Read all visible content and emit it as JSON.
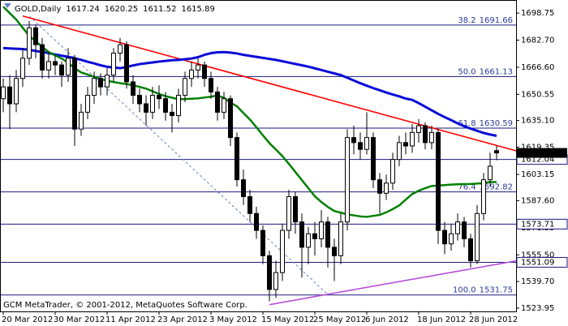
{
  "chart_data": {
    "type": "candlestick",
    "title": "GOLD,Daily",
    "footer": "GCM MetaTrader, © 2001-2012, MetaQuotes Software Corp.",
    "categories": [
      "20 Mar 2012",
      null,
      null,
      null,
      null,
      null,
      null,
      null,
      "30 Mar 2012",
      null,
      null,
      null,
      null,
      null,
      null,
      null,
      "11 Apr 2012",
      null,
      null,
      null,
      null,
      null,
      null,
      null,
      "23 Apr 2012",
      null,
      null,
      null,
      null,
      null,
      null,
      null,
      "3 May 2012",
      null,
      null,
      null,
      null,
      null,
      null,
      null,
      "15 May 2012",
      null,
      null,
      null,
      null,
      null,
      null,
      null,
      "25 May 2012",
      null,
      null,
      null,
      null,
      null,
      null,
      null,
      "6 Jun 2012",
      null,
      null,
      null,
      null,
      null,
      null,
      null,
      "18 Jun 2012",
      null,
      null,
      null,
      null,
      null,
      null,
      null,
      "28 Jun 2012",
      null,
      null,
      null,
      null
    ],
    "ohlc": [
      [
        1648,
        1660,
        1640,
        1655
      ],
      [
        1655,
        1662,
        1630,
        1645
      ],
      [
        1645,
        1665,
        1640,
        1660
      ],
      [
        1660,
        1678,
        1655,
        1672
      ],
      [
        1672,
        1694,
        1668,
        1690
      ],
      [
        1690,
        1692,
        1672,
        1680
      ],
      [
        1680,
        1684,
        1660,
        1665
      ],
      [
        1665,
        1676,
        1660,
        1670
      ],
      [
        1670,
        1674,
        1662,
        1668
      ],
      [
        1668,
        1670,
        1655,
        1662
      ],
      [
        1662,
        1678,
        1658,
        1672
      ],
      [
        1672,
        1674,
        1620,
        1630
      ],
      [
        1630,
        1645,
        1626,
        1640
      ],
      [
        1640,
        1655,
        1636,
        1650
      ],
      [
        1650,
        1664,
        1645,
        1660
      ],
      [
        1660,
        1663,
        1650,
        1655
      ],
      [
        1655,
        1666,
        1650,
        1662
      ],
      [
        1662,
        1678,
        1658,
        1675
      ],
      [
        1675,
        1684,
        1670,
        1680
      ],
      [
        1680,
        1682,
        1654,
        1658
      ],
      [
        1658,
        1662,
        1645,
        1650
      ],
      [
        1650,
        1654,
        1640,
        1645
      ],
      [
        1645,
        1650,
        1632,
        1640
      ],
      [
        1640,
        1655,
        1636,
        1650
      ],
      [
        1650,
        1656,
        1642,
        1648
      ],
      [
        1648,
        1652,
        1635,
        1640
      ],
      [
        1640,
        1645,
        1628,
        1638
      ],
      [
        1638,
        1654,
        1634,
        1650
      ],
      [
        1650,
        1664,
        1646,
        1660
      ],
      [
        1660,
        1670,
        1655,
        1665
      ],
      [
        1665,
        1672,
        1660,
        1668
      ],
      [
        1668,
        1670,
        1655,
        1660
      ],
      [
        1660,
        1664,
        1648,
        1652
      ],
      [
        1652,
        1655,
        1635,
        1640
      ],
      [
        1640,
        1652,
        1636,
        1648
      ],
      [
        1648,
        1650,
        1620,
        1625
      ],
      [
        1625,
        1628,
        1596,
        1600
      ],
      [
        1600,
        1606,
        1585,
        1590
      ],
      [
        1590,
        1594,
        1575,
        1580
      ],
      [
        1580,
        1584,
        1565,
        1570
      ],
      [
        1570,
        1573,
        1550,
        1555
      ],
      [
        1555,
        1558,
        1528,
        1535
      ],
      [
        1535,
        1552,
        1530,
        1545
      ],
      [
        1545,
        1574,
        1540,
        1570
      ],
      [
        1570,
        1594,
        1565,
        1590
      ],
      [
        1590,
        1593,
        1568,
        1575
      ],
      [
        1575,
        1580,
        1542,
        1560
      ],
      [
        1560,
        1572,
        1550,
        1568
      ],
      [
        1568,
        1575,
        1555,
        1565
      ],
      [
        1565,
        1582,
        1560,
        1575
      ],
      [
        1575,
        1578,
        1548,
        1560
      ],
      [
        1560,
        1565,
        1540,
        1555
      ],
      [
        1555,
        1580,
        1550,
        1575
      ],
      [
        1575,
        1630,
        1570,
        1625
      ],
      [
        1625,
        1632,
        1615,
        1622
      ],
      [
        1622,
        1628,
        1612,
        1618
      ],
      [
        1618,
        1640,
        1615,
        1625
      ],
      [
        1625,
        1628,
        1595,
        1600
      ],
      [
        1600,
        1604,
        1580,
        1592
      ],
      [
        1592,
        1603,
        1588,
        1598
      ],
      [
        1598,
        1616,
        1594,
        1612
      ],
      [
        1612,
        1626,
        1608,
        1622
      ],
      [
        1622,
        1628,
        1615,
        1620
      ],
      [
        1620,
        1633,
        1616,
        1628
      ],
      [
        1628,
        1636,
        1622,
        1632
      ],
      [
        1632,
        1634,
        1618,
        1622
      ],
      [
        1622,
        1632,
        1618,
        1628
      ],
      [
        1628,
        1630,
        1562,
        1570
      ],
      [
        1570,
        1575,
        1556,
        1562
      ],
      [
        1562,
        1574,
        1558,
        1568
      ],
      [
        1568,
        1580,
        1564,
        1575
      ],
      [
        1575,
        1578,
        1560,
        1565
      ],
      [
        1565,
        1568,
        1548,
        1552
      ],
      [
        1552,
        1585,
        1550,
        1580
      ],
      [
        1580,
        1604,
        1576,
        1600
      ],
      [
        1600,
        1616,
        1596,
        1608
      ],
      [
        1617.24,
        1620.25,
        1611.52,
        1615.89
      ]
    ],
    "bull_color": "#ffffff",
    "bear_color": "#000000",
    "moving_averages": [
      {
        "color": "#0a0ad8",
        "values": [
          1678,
          1677.8,
          1677.6,
          1677.4,
          1677,
          1676.3,
          1675.7,
          1675,
          1674.2,
          1673.5,
          1672.8,
          1672,
          1671,
          1669.9,
          1668.9,
          1667.8,
          1666.9,
          1666.5,
          1666.1,
          1666.8,
          1667.7,
          1668.5,
          1669,
          1669.5,
          1670,
          1670.4,
          1670.8,
          1671,
          1671.4,
          1671.8,
          1672.6,
          1674,
          1675,
          1675.5,
          1675.6,
          1675.3,
          1674.8,
          1674,
          1673.4,
          1672.8,
          1672.2,
          1671.6,
          1671,
          1670.2,
          1669.4,
          1668.6,
          1667.8,
          1667,
          1666,
          1665,
          1664,
          1663,
          1662,
          1660.4,
          1658.8,
          1657.2,
          1655.7,
          1654.3,
          1653,
          1651.7,
          1650.5,
          1649.4,
          1648.1,
          1647.3,
          1645.4,
          1643.3,
          1641.1,
          1639,
          1637.1,
          1635.3,
          1633.4,
          1631.7,
          1630.3,
          1629,
          1627.7,
          1626.8,
          1626
        ]
      },
      {
        "color": "#008000",
        "values": [
          1702.5,
          1698.7,
          1694.9,
          1690,
          1685.3,
          1682,
          1678.8,
          1675.6,
          1673.7,
          1671.8,
          1669.4,
          1666,
          1663.6,
          1662.3,
          1661,
          1659.7,
          1658.6,
          1657.9,
          1657.2,
          1656.7,
          1656,
          1655,
          1654,
          1652.4,
          1650.8,
          1649.5,
          1648.6,
          1647.7,
          1647.8,
          1648,
          1648.2,
          1648.7,
          1649.2,
          1649.9,
          1648.5,
          1645.7,
          1643.5,
          1639.5,
          1635.7,
          1631.1,
          1626.3,
          1621.7,
          1617.9,
          1614,
          1609.4,
          1604.6,
          1599.8,
          1595,
          1590.2,
          1586.8,
          1583.9,
          1581.5,
          1580.5,
          1579.5,
          1578.9,
          1578.3,
          1578,
          1578.6,
          1579.2,
          1580.7,
          1582.6,
          1584.8,
          1588.2,
          1591.5,
          1593.5,
          1595,
          1596.3,
          1596.5,
          1596.8,
          1597.1,
          1597.3,
          1597.4,
          1597.5,
          1597.7,
          1598.2,
          1598.6,
          1598.6
        ]
      }
    ],
    "trendlines": [
      {
        "color": "#ff0000",
        "x": [
          3,
          82
        ],
        "y": [
          1697,
          1614
        ]
      },
      {
        "color": "#b84fd8",
        "x": [
          41,
          82
        ],
        "y": [
          1526,
          1554
        ]
      },
      {
        "color": "#6a7fd0",
        "dashed": true,
        "x": [
          4,
          50
        ],
        "y": [
          1697,
          1532
        ]
      }
    ],
    "fibo": {
      "color": "#1a1a80",
      "levels": [
        {
          "level": "38.2",
          "price": 1691.66
        },
        {
          "level": "50.0",
          "price": 1661.13
        },
        {
          "level": "61.8",
          "price": 1630.59
        },
        {
          "level": "76.4",
          "price": 1592.82
        },
        {
          "level": "100.0",
          "price": 1531.75
        }
      ]
    },
    "levels": [
      1612.04,
      1573.71,
      1551.09
    ],
    "level_color": "#1a1a80",
    "ylim": [
      1522,
      1706
    ],
    "yticks": [
      1698.75,
      {
        "value": 1682.7,
        "label": "1682.70"
      },
      {
        "value": 1666.6,
        "label": "1666.60"
      },
      1650.55,
      {
        "value": 1635.1,
        "label": "1635.10"
      },
      1619.35,
      1603.15,
      {
        "value": 1587.6,
        "label": "1587.60"
      },
      1571.55,
      {
        "value": 1555.5,
        "label": "1555.50"
      },
      {
        "value": 1539.7,
        "label": "1539.70"
      },
      1523.95
    ]
  }
}
